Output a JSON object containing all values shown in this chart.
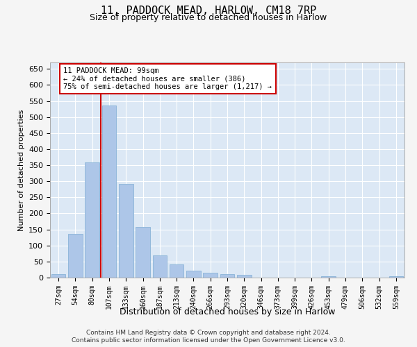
{
  "title": "11, PADDOCK MEAD, HARLOW, CM18 7RP",
  "subtitle": "Size of property relative to detached houses in Harlow",
  "xlabel": "Distribution of detached houses by size in Harlow",
  "ylabel": "Number of detached properties",
  "categories": [
    "27sqm",
    "54sqm",
    "80sqm",
    "107sqm",
    "133sqm",
    "160sqm",
    "187sqm",
    "213sqm",
    "240sqm",
    "266sqm",
    "293sqm",
    "320sqm",
    "346sqm",
    "373sqm",
    "399sqm",
    "426sqm",
    "453sqm",
    "479sqm",
    "506sqm",
    "532sqm",
    "559sqm"
  ],
  "values": [
    11,
    136,
    358,
    535,
    291,
    157,
    69,
    40,
    21,
    15,
    11,
    9,
    0,
    0,
    0,
    0,
    5,
    0,
    0,
    0,
    5
  ],
  "bar_color": "#adc6e8",
  "bar_edge_color": "#8ab4d8",
  "vline_color": "#cc0000",
  "annotation_text": "11 PADDOCK MEAD: 99sqm\n← 24% of detached houses are smaller (386)\n75% of semi-detached houses are larger (1,217) →",
  "annotation_box_color": "#ffffff",
  "annotation_box_edge_color": "#cc0000",
  "ylim": [
    0,
    670
  ],
  "yticks": [
    0,
    50,
    100,
    150,
    200,
    250,
    300,
    350,
    400,
    450,
    500,
    550,
    600,
    650
  ],
  "background_color": "#dce8f5",
  "grid_color": "#ffffff",
  "fig_background": "#f5f5f5",
  "footer_line1": "Contains HM Land Registry data © Crown copyright and database right 2024.",
  "footer_line2": "Contains public sector information licensed under the Open Government Licence v3.0."
}
